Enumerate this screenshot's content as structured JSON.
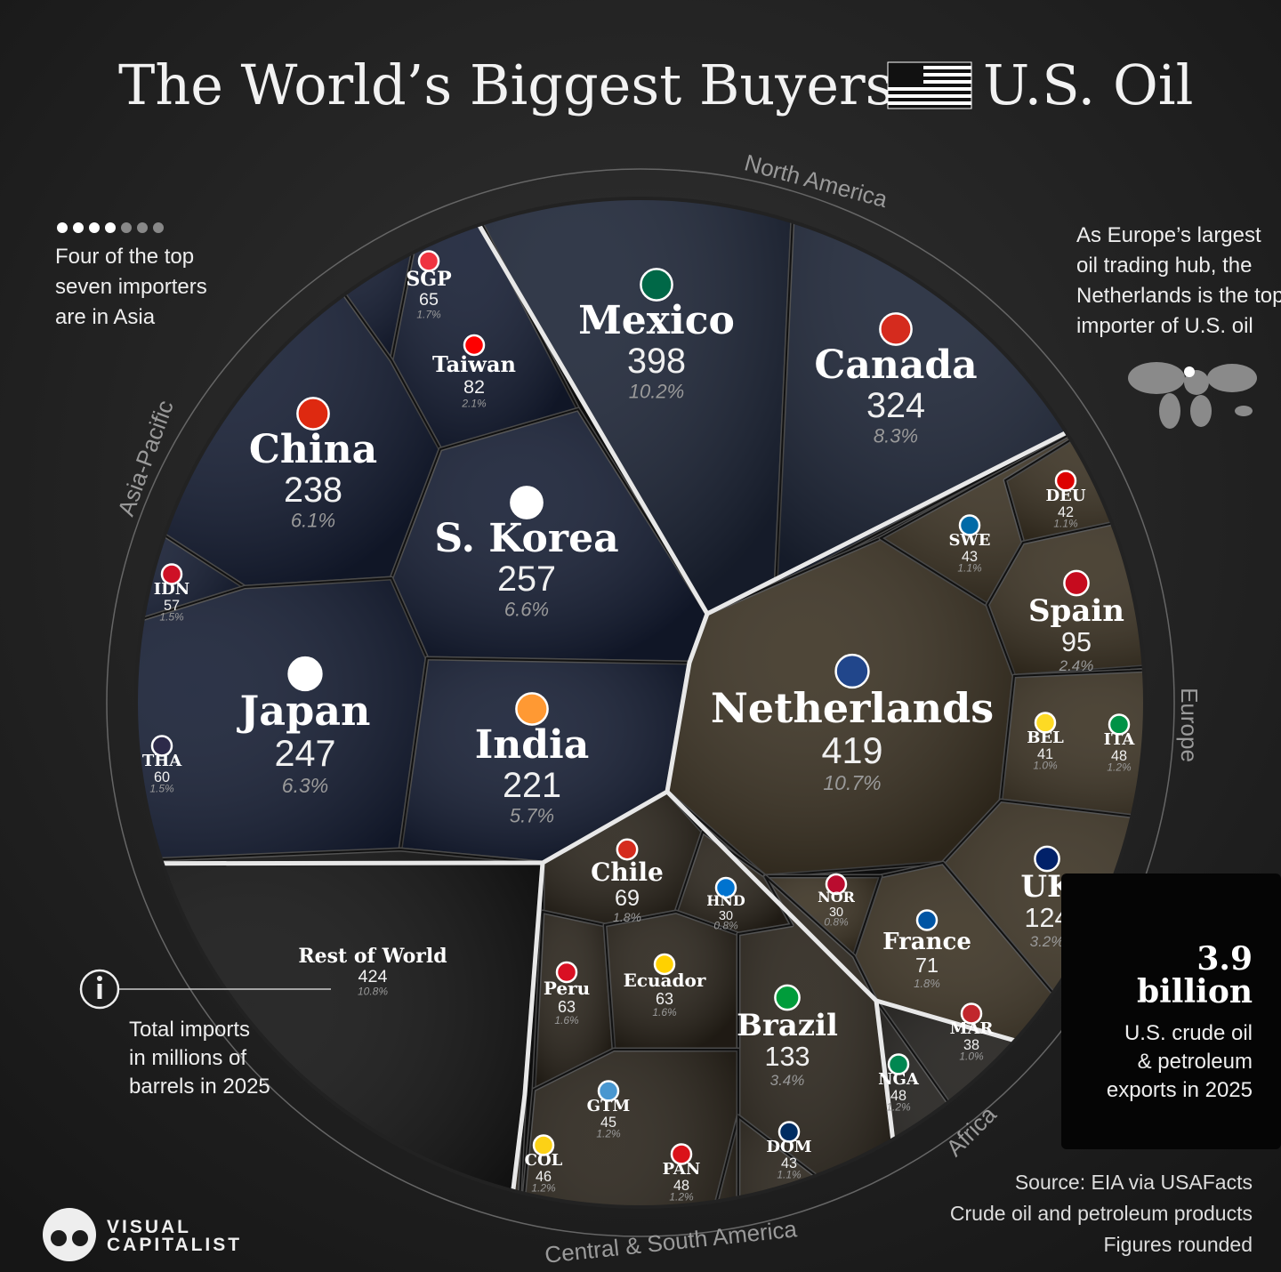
{
  "chart_data": {
    "type": "treemap",
    "title_parts": [
      "The World’s Biggest Buyers of",
      "U.S. Oil"
    ],
    "categories": [
      "Mexico",
      "Canada",
      "SGP",
      "Taiwan",
      "China",
      "S. Korea",
      "IDN",
      "Japan",
      "THA",
      "India",
      "Netherlands",
      "DEU",
      "SWE",
      "Spain",
      "BEL",
      "ITA",
      "UK",
      "France",
      "NOR",
      "Chile",
      "HND",
      "Peru",
      "Ecuador",
      "Brazil",
      "GTM",
      "COL",
      "PAN",
      "DOM",
      "MAR",
      "NGA",
      "Rest of World"
    ],
    "values": [
      398,
      324,
      65,
      82,
      238,
      257,
      57,
      247,
      60,
      221,
      419,
      42,
      43,
      95,
      41,
      48,
      124,
      71,
      30,
      69,
      30,
      63,
      63,
      133,
      45,
      46,
      48,
      43,
      38,
      48,
      424
    ],
    "shares": [
      10.2,
      8.3,
      1.7,
      2.1,
      6.1,
      6.6,
      1.5,
      6.3,
      1.5,
      5.7,
      10.7,
      1.1,
      1.1,
      2.4,
      1.0,
      1.2,
      3.2,
      1.8,
      0.8,
      1.8,
      0.8,
      1.6,
      1.6,
      3.4,
      1.2,
      1.2,
      1.2,
      1.1,
      1.0,
      1.2,
      10.8
    ],
    "share_labels": [
      "10.2%",
      "8.3%",
      "1.7%",
      "2.1%",
      "6.1%",
      "6.6%",
      "1.5%",
      "6.3%",
      "1.5%",
      "5.7%",
      "10.7%",
      "1.1%",
      "1.1%",
      "2.4%",
      "1.0%",
      "1.2%",
      "3.2%",
      "1.8%",
      "0.8%",
      "1.8%",
      "0.8%",
      "1.6%",
      "1.6%",
      "3.4%",
      "1.2%",
      "1.2%",
      "1.2%",
      "1.1%",
      "1.0%",
      "1.2%",
      "10.8%"
    ],
    "regions": [
      "North America",
      "Asia-Pacific",
      "Europe",
      "Africa",
      "Central & South America"
    ],
    "region_of": [
      0,
      0,
      1,
      1,
      1,
      1,
      1,
      1,
      1,
      1,
      2,
      2,
      2,
      2,
      2,
      2,
      2,
      2,
      2,
      4,
      4,
      4,
      4,
      4,
      4,
      4,
      4,
      4,
      3,
      3,
      null
    ],
    "region_colors": [
      "#1c2436",
      "#151d33",
      "#3a3122",
      "#1f1d1a",
      "#29231a"
    ],
    "annotations": {
      "asia_note": [
        "Four of the top",
        "seven importers",
        "are in Asia"
      ],
      "europe_note": [
        "As Europe’s largest",
        "oil trading hub, the",
        "Netherlands is the top",
        "importer of U.S. oil"
      ],
      "legend_note": [
        "Total imports",
        "in millions of",
        "barrels in 2025"
      ]
    },
    "total": 3.9,
    "total_unit": "billion",
    "total_caption": [
      "U.S. crude oil",
      "& petroleum",
      "exports in 2025"
    ],
    "source": [
      "Source: EIA via USAFacts",
      "Crude oil and petroleum products",
      "Figures rounded"
    ],
    "logo": [
      "VISUAL",
      "CAPITALIST"
    ]
  }
}
